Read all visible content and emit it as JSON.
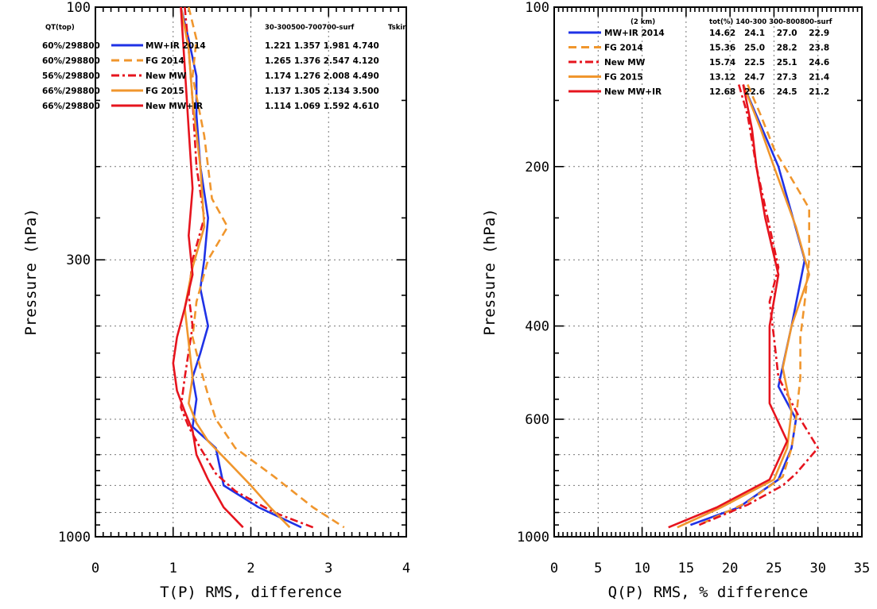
{
  "chart_data": [
    {
      "type": "line",
      "xlabel": "T(P) RMS, difference",
      "ylabel": "Pressure (hPa)",
      "xlim": [
        0,
        4
      ],
      "ylim": [
        1000,
        100
      ],
      "y_scale": "log",
      "x_ticks": [
        "0",
        "1",
        "2",
        "3",
        "4"
      ],
      "y_ticks": [
        {
          "value": 100,
          "label": "100"
        },
        {
          "value": 300,
          "label": "300"
        },
        {
          "value": 1000,
          "label": "1000"
        }
      ],
      "grid": true,
      "legend_placement": "top",
      "legend_header": {
        "left": "QT(top)",
        "columns": "30-300500-700700-surf",
        "tskin": "Tskin"
      },
      "series": [
        {
          "name": "MW+IR 2014",
          "left_label": "60%/298800",
          "stats": "1.221 1.357 1.981 4.740",
          "color": "#1f32e6",
          "dash": "solid",
          "x": [
            1.1,
            1.2,
            1.3,
            1.3,
            1.35,
            1.45,
            1.4,
            1.35,
            1.45,
            1.35,
            1.25,
            1.3,
            1.25,
            1.55,
            1.65,
            2.1,
            2.65
          ],
          "y": [
            100,
            115,
            135,
            160,
            200,
            250,
            300,
            340,
            400,
            450,
            500,
            550,
            620,
            680,
            800,
            880,
            960
          ]
        },
        {
          "name": "FG 2014",
          "left_label": "60%/298800",
          "stats": "1.265 1.376 2.547 4.120",
          "color": "#f0962d",
          "dash": "dash",
          "x": [
            1.2,
            1.3,
            1.25,
            1.4,
            1.5,
            1.7,
            1.45,
            1.3,
            1.25,
            1.35,
            1.45,
            1.55,
            1.8,
            2.3,
            2.8,
            3.2
          ],
          "y": [
            100,
            115,
            135,
            175,
            230,
            260,
            300,
            360,
            420,
            480,
            540,
            600,
            680,
            770,
            880,
            960
          ]
        },
        {
          "name": "New MW",
          "left_label": "56%/298800",
          "stats": "1.174 1.276 2.008 4.490",
          "color": "#e6141e",
          "dash": "dashdot",
          "x": [
            1.15,
            1.2,
            1.25,
            1.3,
            1.4,
            1.25,
            1.2,
            1.25,
            1.15,
            1.1,
            1.2,
            1.35,
            1.55,
            1.8,
            2.3,
            2.8
          ],
          "y": [
            100,
            120,
            150,
            200,
            250,
            300,
            350,
            400,
            500,
            570,
            620,
            680,
            760,
            820,
            900,
            960
          ]
        },
        {
          "name": "FG 2015",
          "left_label": "66%/298800",
          "stats": "1.137 1.305 2.134 3.500",
          "color": "#f0962d",
          "dash": "solid",
          "x": [
            1.1,
            1.2,
            1.25,
            1.35,
            1.4,
            1.25,
            1.15,
            1.2,
            1.25,
            1.2,
            1.3,
            1.45,
            1.7,
            2.0,
            2.25,
            2.5
          ],
          "y": [
            100,
            120,
            150,
            200,
            260,
            310,
            370,
            430,
            500,
            560,
            610,
            660,
            720,
            800,
            880,
            960
          ]
        },
        {
          "name": "New MW+IR",
          "left_label": "66%/298800",
          "stats": "1.114 1.069 1.592 4.610",
          "color": "#e6141e",
          "dash": "solid",
          "x": [
            1.1,
            1.15,
            1.2,
            1.25,
            1.2,
            1.25,
            1.15,
            1.05,
            1.0,
            1.05,
            1.15,
            1.25,
            1.3,
            1.45,
            1.65,
            1.9
          ],
          "y": [
            100,
            130,
            170,
            220,
            270,
            320,
            370,
            420,
            470,
            530,
            580,
            630,
            700,
            780,
            880,
            960
          ]
        }
      ]
    },
    {
      "type": "line",
      "xlabel": "Q(P) RMS, % difference",
      "ylabel": "Pressure (hPa)",
      "xlim": [
        0,
        35
      ],
      "ylim": [
        1000,
        100
      ],
      "y_scale": "log",
      "x_ticks": [
        "0",
        "5",
        "10",
        "15",
        "20",
        "25",
        "30",
        "35"
      ],
      "y_ticks": [
        {
          "value": 100,
          "label": "100"
        },
        {
          "value": 200,
          "label": "200"
        },
        {
          "value": 400,
          "label": "400"
        },
        {
          "value": 600,
          "label": "600"
        },
        {
          "value": 1000,
          "label": "1000"
        }
      ],
      "grid": true,
      "legend_placement": "top",
      "legend_header": {
        "left": "(2 km)",
        "columns": "tot(%) 140-300 300-800800-surf"
      },
      "series": [
        {
          "name": "MW+IR 2014",
          "stats": "14.62   24.1    27.0    22.9",
          "color": "#1f32e6",
          "dash": "solid",
          "x": [
            21.5,
            23.0,
            25.5,
            28.5,
            27.0,
            25.5,
            27.5,
            27.0,
            25.5,
            21.0,
            15.5
          ],
          "y": [
            140,
            160,
            200,
            300,
            400,
            520,
            600,
            680,
            780,
            880,
            950
          ]
        },
        {
          "name": "FG 2014",
          "stats": "15.36   25.0    28.2    23.8",
          "color": "#f0962d",
          "dash": "dash",
          "x": [
            22.0,
            23.5,
            25.0,
            29.0,
            29.0,
            28.5,
            28.0,
            28.0,
            27.5,
            27.0,
            26.0,
            22.0,
            16.5
          ],
          "y": [
            140,
            160,
            185,
            240,
            300,
            360,
            420,
            500,
            600,
            680,
            770,
            860,
            950
          ]
        },
        {
          "name": "New MW",
          "stats": "15.74   22.5    25.1    24.6",
          "color": "#e6141e",
          "dash": "dashdot",
          "x": [
            21.0,
            22.0,
            23.0,
            24.5,
            25.5,
            24.5,
            25.0,
            25.5,
            28.0,
            30.0,
            27.5,
            26.0,
            22.0,
            16.5
          ],
          "y": [
            140,
            160,
            200,
            260,
            310,
            360,
            420,
            500,
            600,
            680,
            760,
            800,
            870,
            950
          ]
        },
        {
          "name": "FG 2015",
          "stats": "13.12   24.7    27.3    21.4",
          "color": "#f0962d",
          "dash": "solid",
          "x": [
            21.5,
            23.5,
            25.0,
            27.5,
            29.0,
            27.0,
            26.0,
            27.0,
            26.5,
            25.0,
            19.0,
            14.0
          ],
          "y": [
            140,
            170,
            200,
            260,
            320,
            400,
            480,
            580,
            680,
            780,
            880,
            960
          ]
        },
        {
          "name": "New MW+IR",
          "stats": "12.68   22.6    24.5    21.2",
          "color": "#e6141e",
          "dash": "solid",
          "x": [
            21.5,
            22.5,
            23.0,
            24.0,
            25.5,
            24.5,
            24.5,
            24.5,
            26.5,
            24.5,
            18.5,
            13.0
          ],
          "y": [
            140,
            170,
            200,
            250,
            320,
            400,
            480,
            560,
            660,
            780,
            880,
            960
          ]
        }
      ]
    }
  ]
}
